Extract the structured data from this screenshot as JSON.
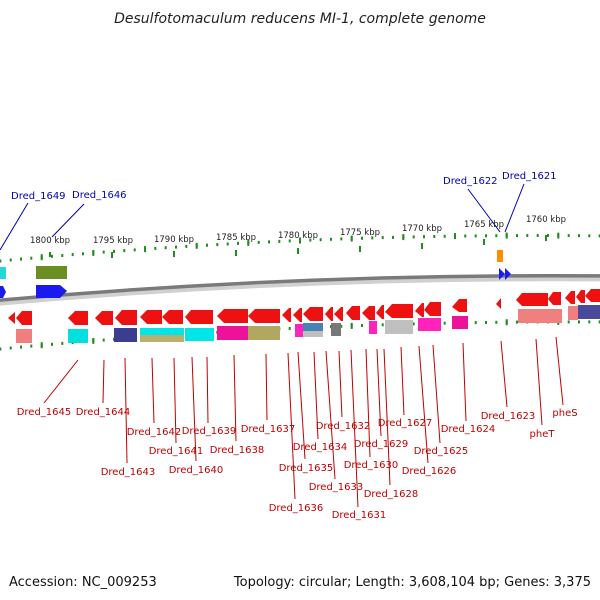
{
  "title": "Desulfotomaculum reducens MI-1, complete genome",
  "footer": {
    "accession": "Accession: NC_009253",
    "stats": "Topology: circular; Length: 3,608,104 bp; Genes: 3,375"
  },
  "colors": {
    "red_gene": "#ee1111",
    "red_label": "#c00000",
    "blue_label": "#0000b0",
    "tick": "#228b22",
    "backbone": "#888888"
  },
  "ticks": [
    {
      "label": "1800 kbp"
    },
    {
      "label": "1795 kbp"
    },
    {
      "label": "1790 kbp"
    },
    {
      "label": "1785 kbp"
    },
    {
      "label": "1780 kbp"
    },
    {
      "label": "1775 kbp"
    },
    {
      "label": "1770 kbp"
    },
    {
      "label": "1765 kbp"
    },
    {
      "label": "1760 kbp"
    }
  ],
  "top_labels": [
    {
      "text": "Dred_1649"
    },
    {
      "text": "Dred_1646"
    },
    {
      "text": "Dred_1622"
    },
    {
      "text": "Dred_1621"
    }
  ],
  "bottom_labels": [
    {
      "text": "Dred_1645"
    },
    {
      "text": "Dred_1644"
    },
    {
      "text": "Dred_1643"
    },
    {
      "text": "Dred_1642"
    },
    {
      "text": "Dred_1641"
    },
    {
      "text": "Dred_1640"
    },
    {
      "text": "Dred_1639"
    },
    {
      "text": "Dred_1638"
    },
    {
      "text": "Dred_1637"
    },
    {
      "text": "Dred_1636"
    },
    {
      "text": "Dred_1635"
    },
    {
      "text": "Dred_1634"
    },
    {
      "text": "Dred_1633"
    },
    {
      "text": "Dred_1632"
    },
    {
      "text": "Dred_1631"
    },
    {
      "text": "Dred_1630"
    },
    {
      "text": "Dred_1629"
    },
    {
      "text": "Dred_1628"
    },
    {
      "text": "Dred_1627"
    },
    {
      "text": "Dred_1626"
    },
    {
      "text": "Dred_1625"
    },
    {
      "text": "Dred_1624"
    },
    {
      "text": "Dred_1623"
    },
    {
      "text": "pheT"
    },
    {
      "text": "pheS"
    }
  ]
}
